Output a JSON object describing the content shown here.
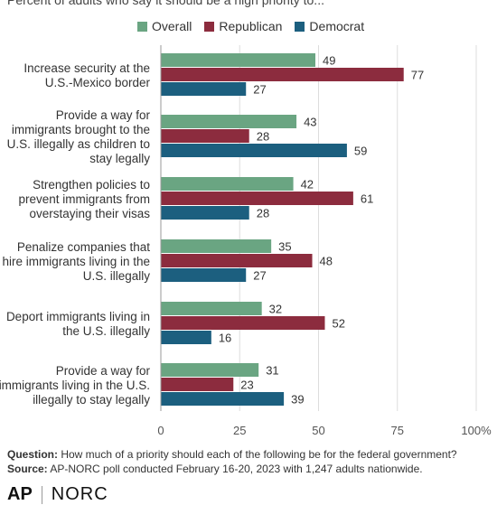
{
  "subtitle": "Percent of adults who say it should be a high priority to...",
  "legend": [
    {
      "name": "Overall",
      "color": "#6aa582"
    },
    {
      "name": "Republican",
      "color": "#8c2c3e"
    },
    {
      "name": "Democrat",
      "color": "#1c5f7f"
    }
  ],
  "chart_data": {
    "type": "bar",
    "orientation": "horizontal",
    "categories": [
      [
        "Increase security at the",
        "U.S.-Mexico border"
      ],
      [
        "Provide a way for",
        "immigrants brought to the",
        "U.S. illegally as children to",
        "stay legally"
      ],
      [
        "Strengthen policies to",
        "prevent immigrants from",
        "overstaying their visas"
      ],
      [
        "Penalize companies that",
        "hire immigrants living in the",
        "U.S. illegally"
      ],
      [
        "Deport immigrants living in",
        "the U.S. illegally"
      ],
      [
        "Provide a way for",
        "immigrants living in the U.S.",
        "illegally to stay legally"
      ]
    ],
    "series": [
      {
        "name": "Overall",
        "color": "#6aa582",
        "values": [
          49,
          43,
          42,
          35,
          32,
          31
        ]
      },
      {
        "name": "Republican",
        "color": "#8c2c3e",
        "values": [
          77,
          28,
          61,
          48,
          52,
          23
        ]
      },
      {
        "name": "Democrat",
        "color": "#1c5f7f",
        "values": [
          27,
          59,
          28,
          27,
          16,
          39
        ]
      }
    ],
    "xlim": [
      0,
      100
    ],
    "xticks": [
      "0",
      "25",
      "50",
      "75",
      "100%"
    ],
    "xtick_values": [
      0,
      25,
      50,
      75,
      100
    ],
    "grid": true
  },
  "footer": {
    "question_label": "Question:",
    "question_text": "How much of a priority should each of the following be for the federal government?",
    "source_label": "Source:",
    "source_text": "AP-NORC poll conducted February 16-20, 2023 with 1,247 adults nationwide."
  },
  "logo": {
    "ap": "AP",
    "norc": "NORC"
  }
}
